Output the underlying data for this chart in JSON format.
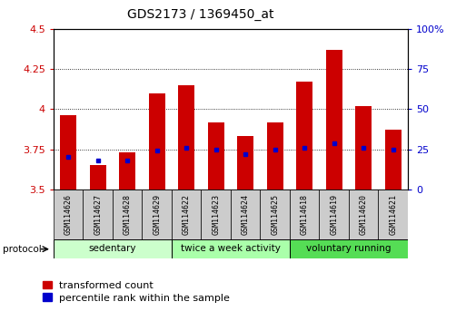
{
  "title": "GDS2173 / 1369450_at",
  "samples": [
    "GSM114626",
    "GSM114627",
    "GSM114628",
    "GSM114629",
    "GSM114622",
    "GSM114623",
    "GSM114624",
    "GSM114625",
    "GSM114618",
    "GSM114619",
    "GSM114620",
    "GSM114621"
  ],
  "transformed_count": [
    3.96,
    3.65,
    3.73,
    4.1,
    4.15,
    3.92,
    3.83,
    3.92,
    4.17,
    4.37,
    4.02,
    3.87
  ],
  "percentile_rank": [
    20,
    18,
    18,
    24,
    26,
    25,
    22,
    25,
    26,
    29,
    26,
    25
  ],
  "groups": [
    {
      "label": "sedentary",
      "indices": [
        0,
        1,
        2,
        3
      ],
      "color": "#ccffcc"
    },
    {
      "label": "twice a week activity",
      "indices": [
        4,
        5,
        6,
        7
      ],
      "color": "#aaffaa"
    },
    {
      "label": "voluntary running",
      "indices": [
        8,
        9,
        10,
        11
      ],
      "color": "#55dd55"
    }
  ],
  "ylim_left": [
    3.5,
    4.5
  ],
  "ylim_right": [
    0,
    100
  ],
  "yticks_left": [
    3.5,
    3.75,
    4.0,
    4.25,
    4.5
  ],
  "yticks_right": [
    0,
    25,
    50,
    75,
    100
  ],
  "ytick_labels_left": [
    "3.5",
    "3.75",
    "4",
    "4.25",
    "4.5"
  ],
  "ytick_labels_right": [
    "0",
    "25",
    "50",
    "75",
    "100%"
  ],
  "bar_color": "#cc0000",
  "marker_color": "#0000cc",
  "bar_width": 0.55,
  "background_color": "#ffffff",
  "plot_bg": "#ffffff",
  "label_transformed": "transformed count",
  "label_percentile": "percentile rank within the sample",
  "xlabel_bg": "#cccccc",
  "grid_dotted_at": [
    3.75,
    4.0,
    4.25
  ]
}
